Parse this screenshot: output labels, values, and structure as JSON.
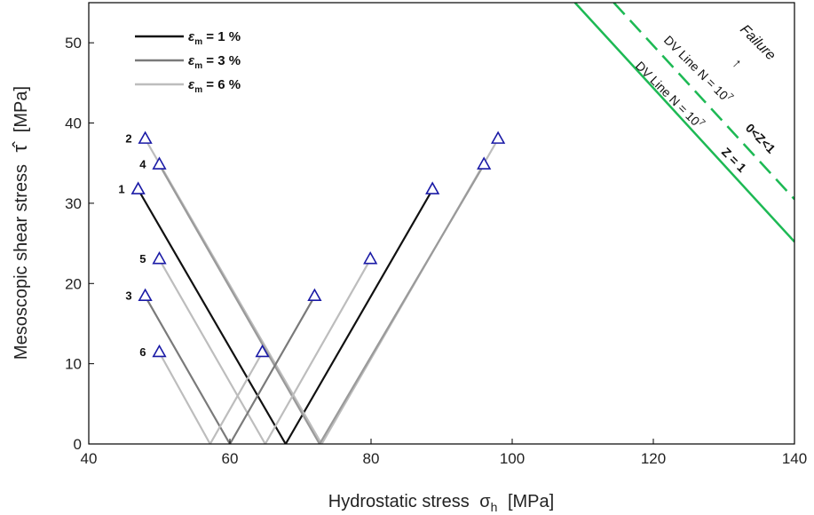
{
  "chart_data": {
    "type": "line",
    "xlabel_main": "Hydrostatic stress",
    "xlabel_symbol": "σ",
    "xlabel_sub": "h",
    "xlabel_unit": "[MPa]",
    "ylabel_main": "Mesoscopic shear stress",
    "ylabel_symbol": "τ̂",
    "ylabel_unit": "[MPa]",
    "xlim": [
      40,
      140
    ],
    "ylim": [
      0,
      55
    ],
    "xticks": [
      40,
      60,
      80,
      100,
      120,
      140
    ],
    "yticks": [
      0,
      10,
      20,
      30,
      40,
      50
    ],
    "legend": {
      "placement": "top-left",
      "entries": [
        {
          "symbol": "ε",
          "sub": "m",
          "text": " = 1 %",
          "color": "#111111"
        },
        {
          "symbol": "ε",
          "sub": "m",
          "text": " = 3 %",
          "color": "#7a7a7a"
        },
        {
          "symbol": "ε",
          "sub": "m",
          "text": " = 6 %",
          "color": "#bdbdbd"
        }
      ]
    },
    "marker_color": "#1a1aa6",
    "paths": [
      {
        "id": "1",
        "color": "#111111",
        "points": [
          [
            47,
            31.7
          ],
          [
            67.9,
            0
          ],
          [
            88.7,
            31.7
          ]
        ]
      },
      {
        "id": "2",
        "color": "#bdbdbd",
        "points": [
          [
            48,
            38
          ],
          [
            73,
            0
          ],
          [
            98,
            38
          ]
        ]
      },
      {
        "id": "4",
        "color": "#9a9a9a",
        "points": [
          [
            50,
            34.8
          ],
          [
            72.7,
            0
          ],
          [
            96,
            34.8
          ]
        ]
      },
      {
        "id": "5",
        "color": "#bdbdbd",
        "points": [
          [
            50,
            23
          ],
          [
            65,
            0
          ],
          [
            79.9,
            23
          ]
        ]
      },
      {
        "id": "3",
        "color": "#7a7a7a",
        "points": [
          [
            48,
            18.4
          ],
          [
            60,
            0
          ],
          [
            72,
            18.4
          ]
        ]
      },
      {
        "id": "6",
        "color": "#bdbdbd",
        "points": [
          [
            50,
            11.4
          ],
          [
            57.2,
            0
          ],
          [
            64.6,
            11.4
          ]
        ]
      }
    ],
    "point_labels": [
      {
        "text": "1",
        "x": 47,
        "y": 31.7
      },
      {
        "text": "2",
        "x": 48,
        "y": 38
      },
      {
        "text": "3",
        "x": 48,
        "y": 18.4
      },
      {
        "text": "4",
        "x": 50,
        "y": 34.8
      },
      {
        "text": "5",
        "x": 50,
        "y": 23
      },
      {
        "text": "6",
        "x": 50,
        "y": 11.4
      }
    ],
    "dv_lines": [
      {
        "style": "solid",
        "color": "#1db954",
        "points": [
          [
            108.9,
            55
          ],
          [
            140,
            25.2
          ]
        ],
        "label": "DV Line  N = 10",
        "sup": "7",
        "condition": "Z = 1"
      },
      {
        "style": "dashed",
        "color": "#1db954",
        "points": [
          [
            114.4,
            55
          ],
          [
            140,
            30.5
          ]
        ],
        "label": "DV Line  N = 10",
        "sup": "7",
        "condition": "0<Z<1"
      }
    ],
    "annotation_failure": "Failure",
    "annotation_arrow": "↑"
  }
}
